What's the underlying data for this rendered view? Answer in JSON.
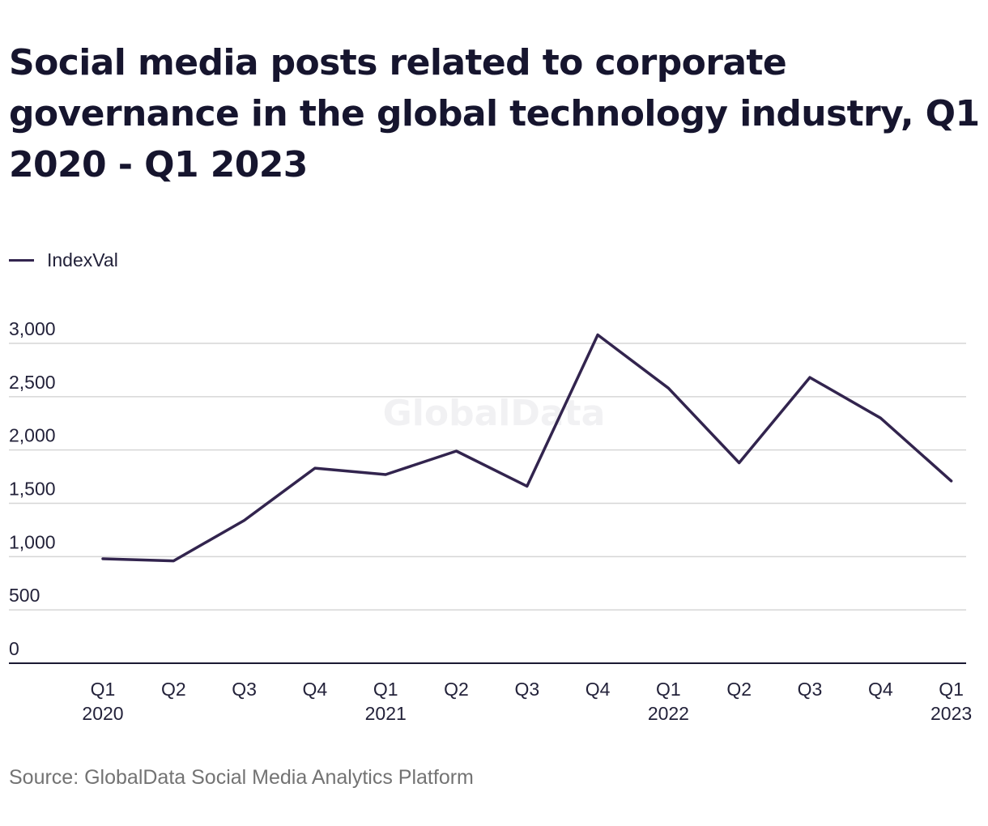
{
  "header": {
    "title": "Social media posts related to corporate governance in the global technology industry, Q1 2020 - Q1 2023"
  },
  "legend": {
    "label": "IndexVal",
    "color": "#32244e"
  },
  "watermark": "GlobalData",
  "footer": {
    "source": "Source: GlobalData Social Media Analytics Platform"
  },
  "chart_data": {
    "type": "line",
    "title": "Social media posts related to corporate governance in the global technology industry, Q1 2020 - Q1 2023",
    "xlabel": "",
    "ylabel": "",
    "categories": [
      [
        "Q1",
        "2020"
      ],
      [
        "Q2",
        ""
      ],
      [
        "Q3",
        ""
      ],
      [
        "Q4",
        ""
      ],
      [
        "Q1",
        "2021"
      ],
      [
        "Q2",
        ""
      ],
      [
        "Q3",
        ""
      ],
      [
        "Q4",
        ""
      ],
      [
        "Q1",
        "2022"
      ],
      [
        "Q2",
        ""
      ],
      [
        "Q3",
        ""
      ],
      [
        "Q4",
        ""
      ],
      [
        "Q1",
        "2023"
      ]
    ],
    "series": [
      {
        "name": "IndexVal",
        "color": "#32244e",
        "values": [
          980,
          960,
          1340,
          1830,
          1770,
          1990,
          1660,
          3080,
          2580,
          1880,
          2680,
          2300,
          1710
        ]
      }
    ],
    "ylim": [
      0,
      3000
    ],
    "yticks": [
      {
        "value": 0,
        "label": "0"
      },
      {
        "value": 500,
        "label": "500"
      },
      {
        "value": 1000,
        "label": "1,000"
      },
      {
        "value": 1500,
        "label": "1,500"
      },
      {
        "value": 2000,
        "label": "2,000"
      },
      {
        "value": 2500,
        "label": "2,500"
      },
      {
        "value": 3000,
        "label": "3,000"
      }
    ],
    "grid": true,
    "legend_position": "top-left"
  }
}
